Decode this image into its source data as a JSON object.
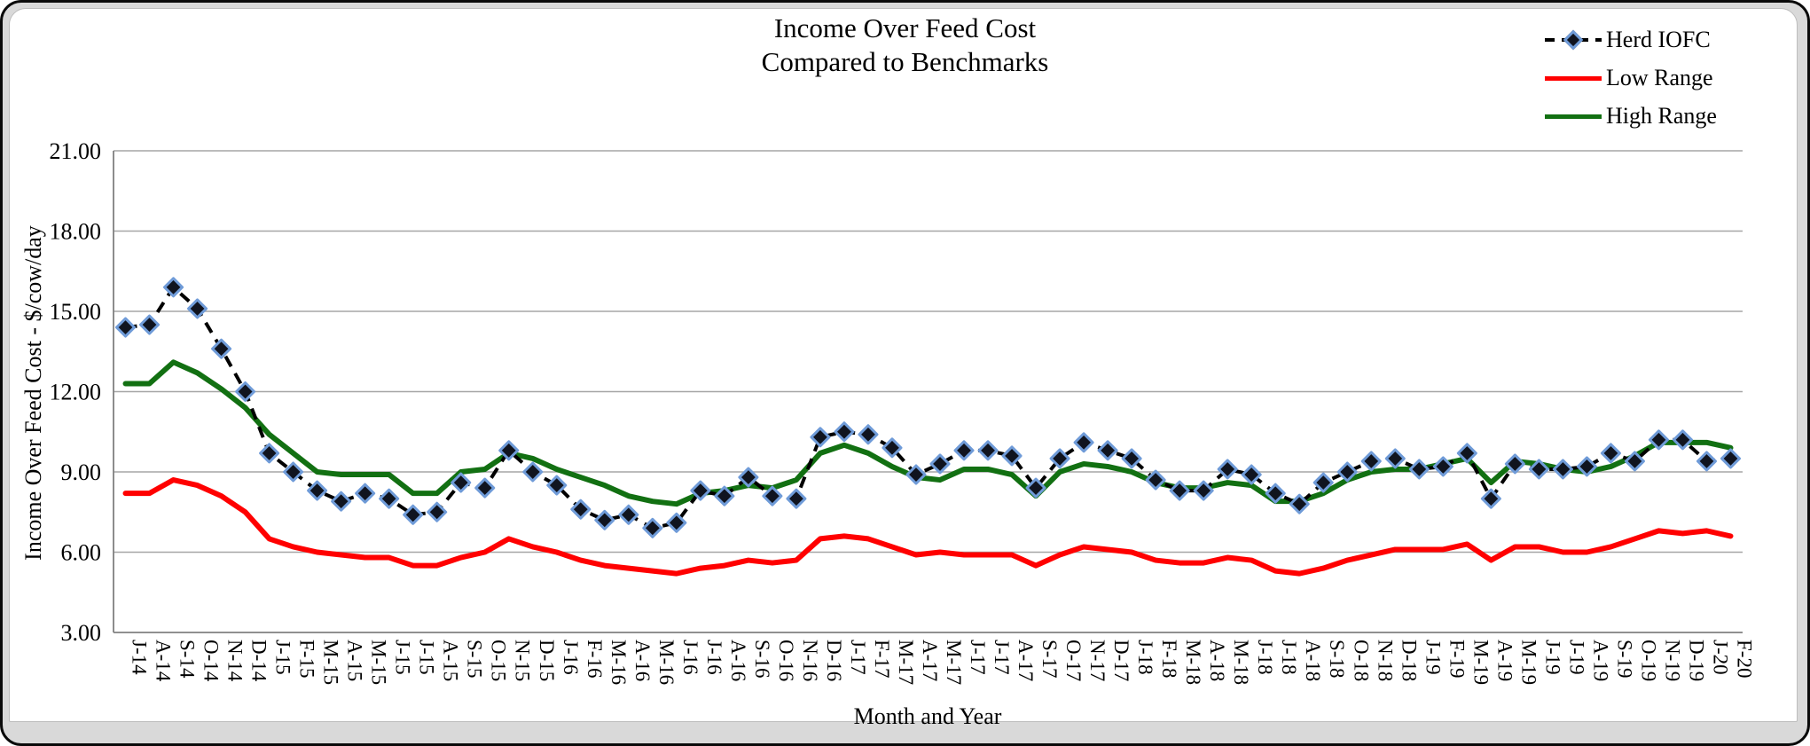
{
  "card": {
    "background": "#ffffff",
    "border_color": "#0a0a0a",
    "bottom_strip_color": "#d9d9d9"
  },
  "chart_data": {
    "type": "line",
    "title": "Income Over Feed Cost",
    "subtitle": "Compared to Benchmarks",
    "xlabel": "Month and Year",
    "ylabel": "Income Over Feed Cost - $/cow/day",
    "ylim": [
      3,
      21
    ],
    "y_ticks": [
      "21.00",
      "18.00",
      "15.00",
      "12.00",
      "9.00",
      "6.00",
      "3.00"
    ],
    "grid": "horizontal",
    "legend_position": "top-right",
    "colors": {
      "gridline": "#a6a6a6",
      "axis": "#808080",
      "herd_line": "#000000",
      "herd_marker_fill": "#10141f",
      "herd_marker_stroke": "#6f9bd8",
      "low": "#ff0000",
      "high": "#127012"
    },
    "categories": [
      "J-14",
      "A-14",
      "S-14",
      "O-14",
      "N-14",
      "D-14",
      "J-15",
      "F-15",
      "M-15",
      "A-15",
      "M-15",
      "J-15",
      "J-15",
      "A-15",
      "S-15",
      "O-15",
      "N-15",
      "D-15",
      "J-16",
      "F-16",
      "M-16",
      "A-16",
      "M-16",
      "J-16",
      "J-16",
      "A-16",
      "S-16",
      "O-16",
      "N-16",
      "D-16",
      "J-17",
      "F-17",
      "M-17",
      "A-17",
      "M-17",
      "J-17",
      "J-17",
      "A-17",
      "S-17",
      "O-17",
      "N-17",
      "D-17",
      "J-18",
      "F-18",
      "M-18",
      "A-18",
      "M-18",
      "J-18",
      "J-18",
      "A-18",
      "S-18",
      "O-18",
      "N-18",
      "D-18",
      "J-19",
      "F-19",
      "M-19",
      "A-19",
      "M-19",
      "J-19",
      "J-19",
      "A-19",
      "S-19",
      "O-19",
      "N-19",
      "D-19",
      "J-20",
      "F-20"
    ],
    "series": [
      {
        "name": "Herd IOFC",
        "style": "dashed-diamond",
        "values": [
          14.4,
          14.5,
          15.9,
          15.1,
          13.6,
          12.0,
          9.7,
          9.0,
          8.3,
          7.9,
          8.2,
          8.0,
          7.4,
          7.5,
          8.6,
          8.4,
          9.8,
          9.0,
          8.5,
          7.6,
          7.2,
          7.4,
          6.9,
          7.1,
          8.3,
          8.1,
          8.8,
          8.1,
          8.0,
          10.3,
          10.5,
          10.4,
          9.9,
          8.9,
          9.3,
          9.8,
          9.8,
          9.6,
          8.4,
          9.5,
          10.1,
          9.8,
          9.5,
          8.7,
          8.3,
          8.3,
          9.1,
          8.9,
          8.2,
          7.8,
          8.6,
          9.0,
          9.4,
          9.5,
          9.1,
          9.2,
          9.7,
          8.0,
          9.3,
          9.1,
          9.1,
          9.2,
          9.7,
          9.4,
          10.2,
          10.2,
          9.4,
          9.5
        ]
      },
      {
        "name": "Low Range",
        "style": "solid",
        "values": [
          8.2,
          8.2,
          8.7,
          8.5,
          8.1,
          7.5,
          6.5,
          6.2,
          6.0,
          5.9,
          5.8,
          5.8,
          5.5,
          5.5,
          5.8,
          6.0,
          6.5,
          6.2,
          6.0,
          5.7,
          5.5,
          5.4,
          5.3,
          5.2,
          5.4,
          5.5,
          5.7,
          5.6,
          5.7,
          6.5,
          6.6,
          6.5,
          6.2,
          5.9,
          6.0,
          5.9,
          5.9,
          5.9,
          5.5,
          5.9,
          6.2,
          6.1,
          6.0,
          5.7,
          5.6,
          5.6,
          5.8,
          5.7,
          5.3,
          5.2,
          5.4,
          5.7,
          5.9,
          6.1,
          6.1,
          6.1,
          6.3,
          5.7,
          6.2,
          6.2,
          6.0,
          6.0,
          6.2,
          6.5,
          6.8,
          6.7,
          6.8,
          6.6
        ]
      },
      {
        "name": "High Range",
        "style": "solid",
        "values": [
          12.3,
          12.3,
          13.1,
          12.7,
          12.1,
          11.4,
          10.4,
          9.7,
          9.0,
          8.9,
          8.9,
          8.9,
          8.2,
          8.2,
          9.0,
          9.1,
          9.7,
          9.5,
          9.1,
          8.8,
          8.5,
          8.1,
          7.9,
          7.8,
          8.2,
          8.3,
          8.5,
          8.4,
          8.7,
          9.7,
          10.0,
          9.7,
          9.2,
          8.8,
          8.7,
          9.1,
          9.1,
          8.9,
          8.1,
          9.0,
          9.3,
          9.2,
          9.0,
          8.6,
          8.4,
          8.4,
          8.6,
          8.5,
          7.9,
          7.9,
          8.2,
          8.7,
          9.0,
          9.1,
          9.1,
          9.3,
          9.5,
          8.6,
          9.4,
          9.3,
          9.1,
          9.0,
          9.2,
          9.6,
          10.1,
          10.1,
          10.1,
          9.9
        ]
      }
    ]
  }
}
